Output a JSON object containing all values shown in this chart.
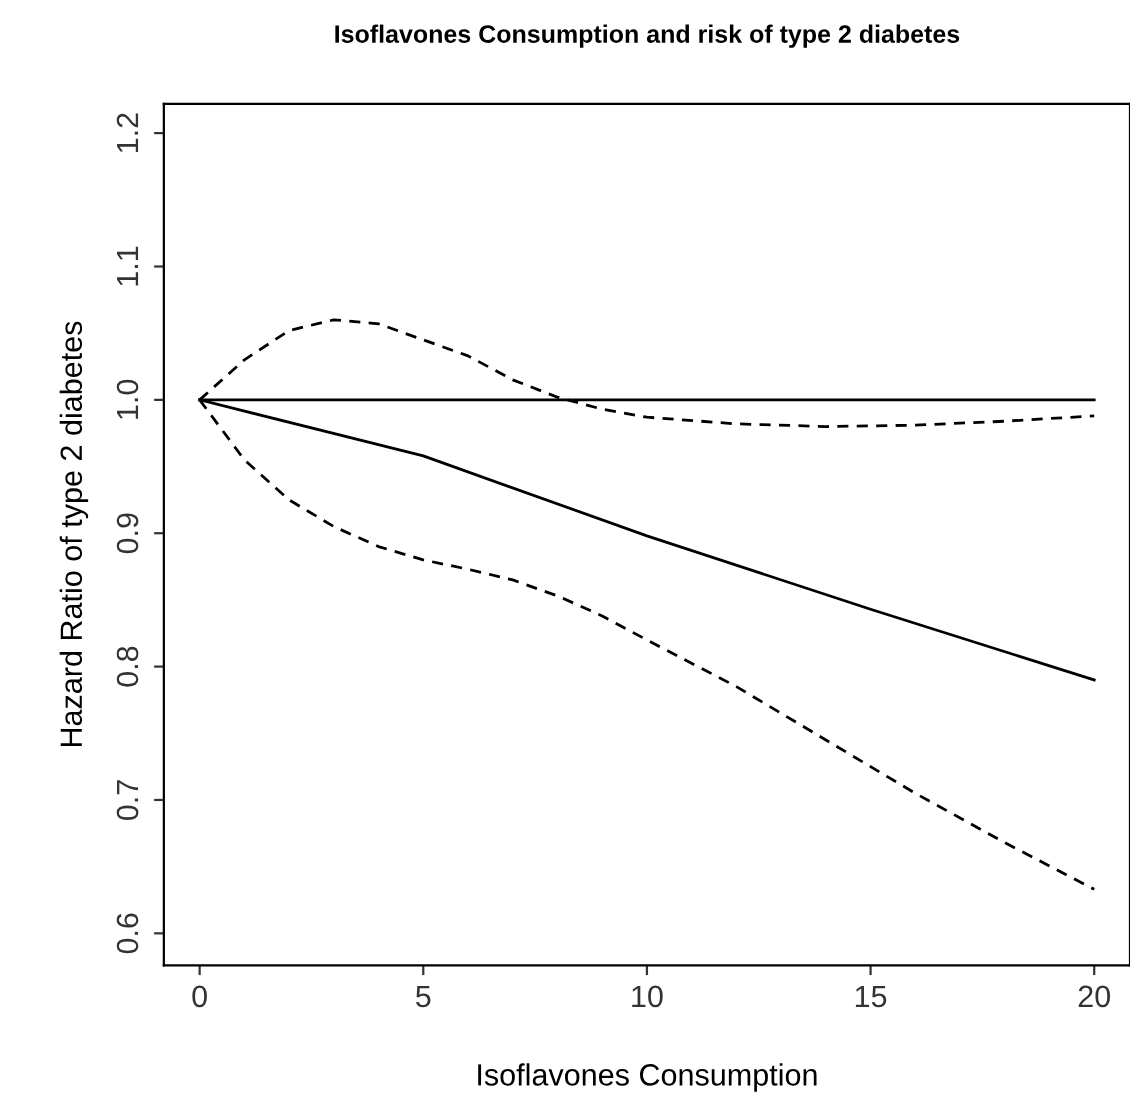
{
  "chart_data": {
    "type": "line",
    "title": "Isoflavones Consumption and risk of type 2 diabetes",
    "xlabel": "Isoflavones Consumption",
    "ylabel": "Hazard Ratio of type 2 diabetes",
    "xlim": [
      -0.8,
      20.8
    ],
    "ylim": [
      0.576,
      1.222
    ],
    "xticks": [
      0,
      5,
      10,
      15,
      20
    ],
    "yticks": [
      0.6,
      0.7,
      0.8,
      0.9,
      {
        "value": 1.0,
        "label": "1.0"
      },
      1.1,
      1.2
    ],
    "grid": false,
    "legend": false,
    "marker": "none",
    "series": [
      {
        "color": "#000000",
        "line_style": "solid",
        "x": [
          0,
          20
        ],
        "values": [
          1.0,
          1.0
        ]
      },
      {
        "color": "#000000",
        "line_style": "solid",
        "x": [
          0,
          5,
          10,
          15,
          20
        ],
        "values": [
          1.0,
          0.958,
          0.898,
          0.843,
          0.79
        ]
      },
      {
        "color": "#000000",
        "line_style": "dashed",
        "x": [
          0,
          1,
          2,
          3,
          4,
          5,
          6,
          7,
          8,
          9,
          10,
          12,
          14,
          16,
          18,
          20
        ],
        "values": [
          1.0,
          1.03,
          1.052,
          1.06,
          1.057,
          1.045,
          1.033,
          1.015,
          1.002,
          0.993,
          0.987,
          0.982,
          0.98,
          0.981,
          0.984,
          0.988
        ]
      },
      {
        "color": "#000000",
        "line_style": "dashed",
        "x": [
          0,
          1,
          2,
          3,
          4,
          5,
          6,
          7,
          8,
          9,
          10,
          12,
          14,
          16,
          18,
          20
        ],
        "values": [
          1.0,
          0.955,
          0.925,
          0.905,
          0.89,
          0.88,
          0.873,
          0.865,
          0.853,
          0.838,
          0.82,
          0.785,
          0.745,
          0.705,
          0.668,
          0.633
        ]
      }
    ]
  }
}
